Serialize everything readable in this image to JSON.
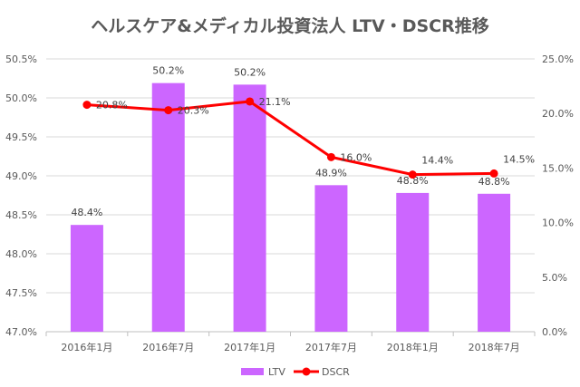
{
  "chart_data": {
    "type": "bar+line",
    "title": "ヘルスケア&メディカル投資法人 LTV・DSCR推移",
    "categories": [
      "2016年1月",
      "2016年7月",
      "2017年1月",
      "2017年7月",
      "2018年1月",
      "2018年7月"
    ],
    "series": [
      {
        "name": "LTV",
        "type": "bar",
        "axis": "left",
        "color": "#cc66ff",
        "values": [
          48.37,
          50.19,
          50.17,
          48.88,
          48.78,
          48.77
        ],
        "labels": [
          "48.4%",
          "50.2%",
          "50.2%",
          "48.9%",
          "48.8%",
          "48.8%"
        ]
      },
      {
        "name": "DSCR",
        "type": "line",
        "axis": "right",
        "color": "#ff0000",
        "values": [
          20.8,
          20.3,
          21.1,
          16.0,
          14.4,
          14.5
        ],
        "labels": [
          "20.8%",
          "20.3%",
          "21.1%",
          "16.0%",
          "14.4%",
          "14.5%"
        ]
      }
    ],
    "left_axis": {
      "ylim": [
        47.0,
        50.5
      ],
      "ticks": [
        "47.0%",
        "47.5%",
        "48.0%",
        "48.5%",
        "49.0%",
        "49.5%",
        "50.0%",
        "50.5%"
      ]
    },
    "right_axis": {
      "ylim": [
        0,
        25
      ],
      "ticks": [
        "0.0%",
        "5.0%",
        "10.0%",
        "15.0%",
        "20.0%",
        "25.0%"
      ]
    },
    "grid": true,
    "legend": "bottom"
  }
}
